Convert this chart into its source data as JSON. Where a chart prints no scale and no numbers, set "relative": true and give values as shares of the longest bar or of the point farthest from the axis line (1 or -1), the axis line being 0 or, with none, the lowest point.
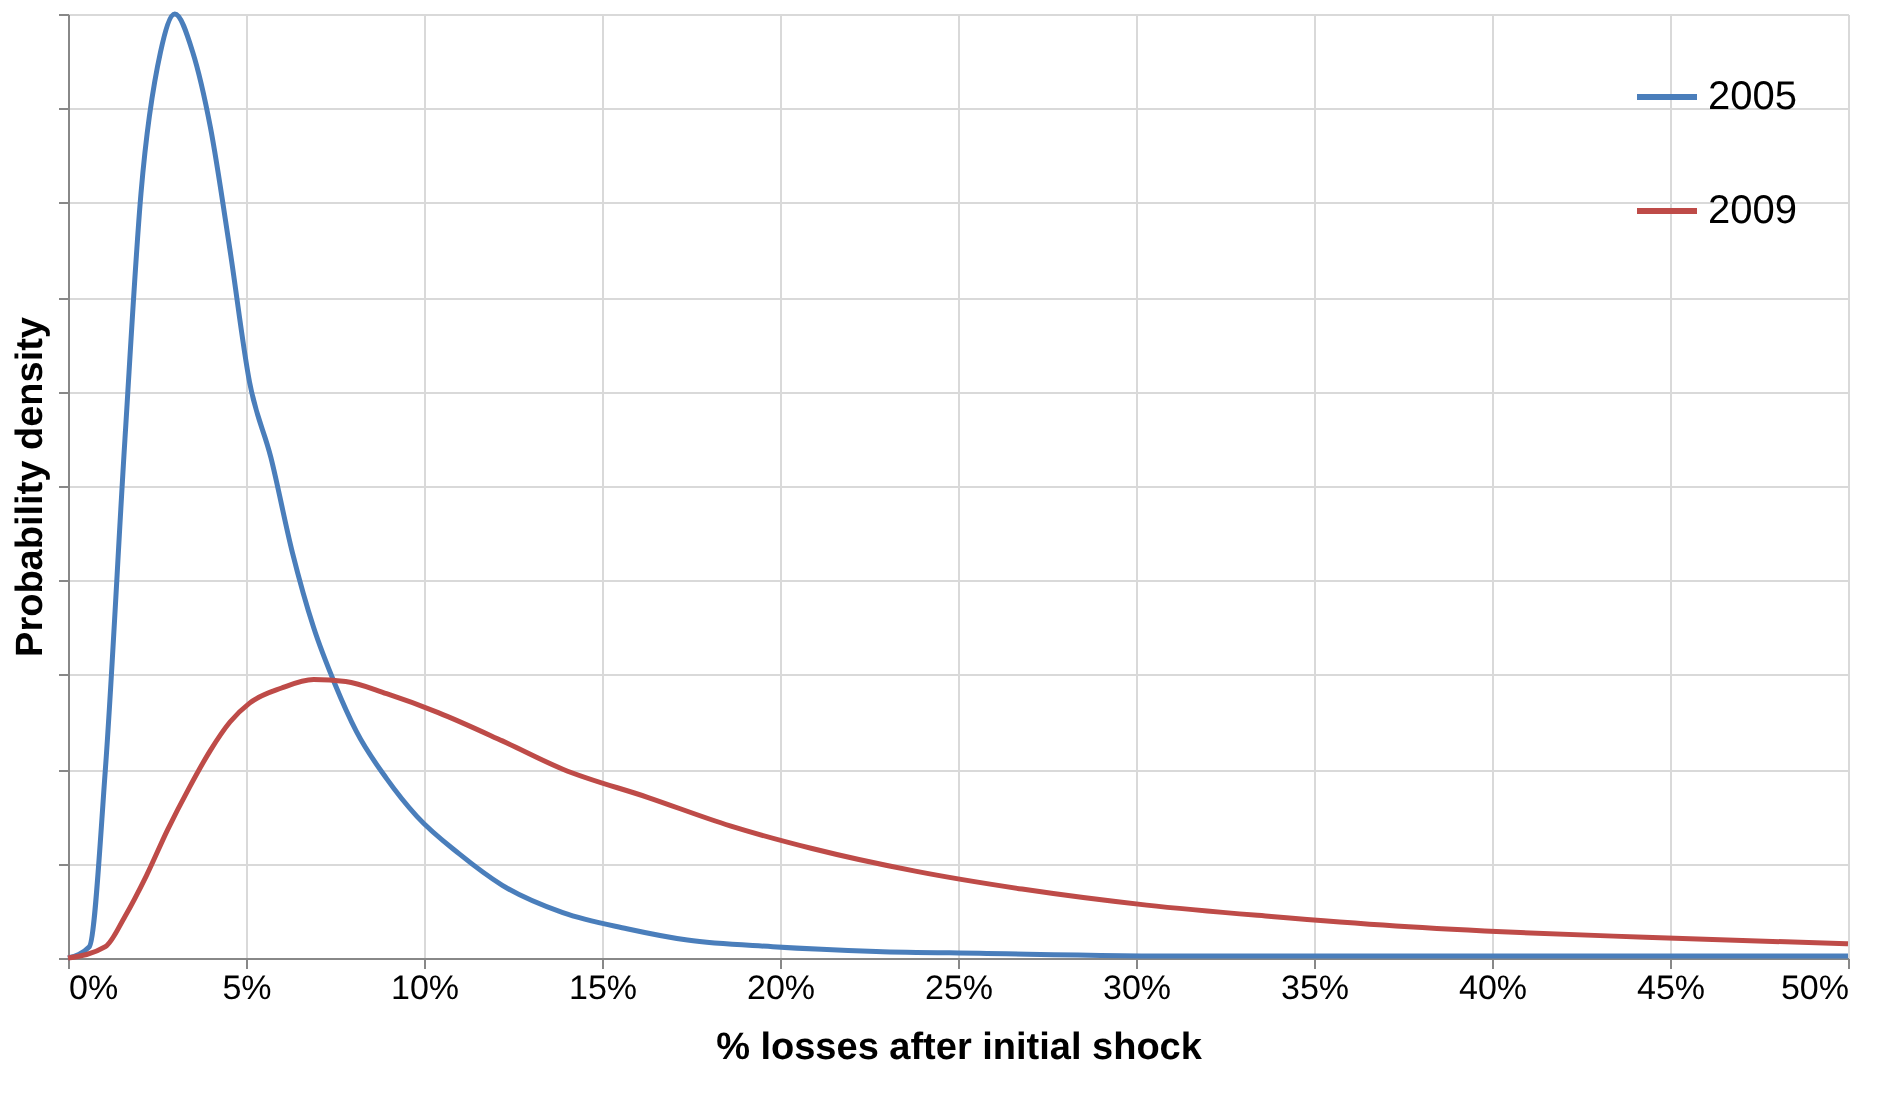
{
  "chart_data": {
    "type": "line",
    "xlabel": "% losses after initial shock",
    "ylabel": "Probability density",
    "relative": true,
    "grid": true,
    "legend": "top right",
    "marker": "none",
    "line_style": "solid",
    "xlim": [
      0,
      50
    ],
    "xticks": [
      {
        "value": 0,
        "label": "0%"
      },
      {
        "value": 5,
        "label": "5%"
      },
      {
        "value": 10,
        "label": "10%"
      },
      {
        "value": 15,
        "label": "15%"
      },
      {
        "value": 20,
        "label": "20%"
      },
      {
        "value": 25,
        "label": "25%"
      },
      {
        "value": 30,
        "label": "30%"
      },
      {
        "value": 35,
        "label": "35%"
      },
      {
        "value": 40,
        "label": "40%"
      },
      {
        "value": 45,
        "label": "45%"
      },
      {
        "value": 50,
        "label": "50%"
      }
    ],
    "series": [
      {
        "name": "2005",
        "color": "#4a7ebb",
        "x": [
          0,
          0.6,
          1.05,
          1.6,
          2.05,
          2.6,
          3.0,
          3.5,
          4.0,
          4.55,
          5.1,
          5.7,
          6.3,
          6.9,
          7.5,
          8.1,
          8.95,
          9.8,
          11,
          12.2,
          13.9,
          15.7,
          17.4,
          19.8,
          22.7,
          25.6,
          31.5,
          50
        ],
        "values": [
          0,
          0.012,
          0.2,
          0.55,
          0.81,
          0.96,
          1,
          0.96,
          0.88,
          0.75,
          0.61,
          0.53,
          0.43,
          0.35,
          0.29,
          0.24,
          0.19,
          0.15,
          0.11,
          0.077,
          0.048,
          0.031,
          0.019,
          0.012,
          0.007,
          0.005,
          0.002,
          0.002
        ]
      },
      {
        "name": "2009",
        "color": "#be4b48",
        "x": [
          0,
          1.05,
          1.6,
          2.2,
          2.8,
          3.4,
          4.0,
          4.55,
          5.1,
          6.0,
          6.9,
          7.8,
          8.95,
          10.4,
          12.2,
          13.9,
          16.3,
          18.6,
          20.9,
          23.8,
          26.8,
          30.3,
          33.8,
          37.3,
          40.8,
          44.3,
          50
        ],
        "values": [
          0,
          0.012,
          0.044,
          0.087,
          0.136,
          0.18,
          0.22,
          0.25,
          0.27,
          0.286,
          0.295,
          0.293,
          0.28,
          0.26,
          0.23,
          0.2,
          0.17,
          0.14,
          0.116,
          0.092,
          0.073,
          0.056,
          0.044,
          0.034,
          0.027,
          0.022,
          0.015
        ]
      }
    ]
  }
}
